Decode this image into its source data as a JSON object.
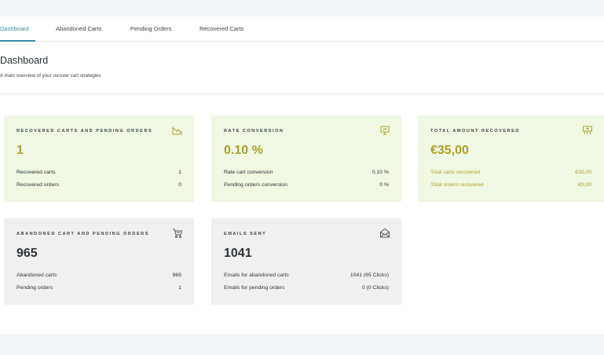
{
  "tabs": [
    {
      "label": "Dashboard"
    },
    {
      "label": "Abandoned Carts"
    },
    {
      "label": "Pending Orders"
    },
    {
      "label": "Recovered Carts"
    }
  ],
  "page": {
    "title": "Dashboard",
    "subtitle": "A main overview of your recover cart strategies"
  },
  "cards": [
    {
      "title": "RECOVERED CARTS AND PENDING ORDERS",
      "icon": "chart-down-icon",
      "value": "1",
      "rows": [
        {
          "label": "Recovered carts",
          "value": "1"
        },
        {
          "label": "Recovered orders",
          "value": "0"
        }
      ]
    },
    {
      "title": "RATE CONVERSION",
      "icon": "presentation-board-icon",
      "value": "0.10 %",
      "rows": [
        {
          "label": "Rate cart conversion",
          "value": "0.10 %"
        },
        {
          "label": "Pending orders conversion",
          "value": "0 %"
        }
      ]
    },
    {
      "title": "TOTAL AMOUNT RECOVERED",
      "icon": "money-board-icon",
      "value": "€35,00",
      "rows": [
        {
          "label": "Total carts recovered",
          "value": "€35,00"
        },
        {
          "label": "Total orders recovered",
          "value": "€0,00"
        }
      ]
    },
    {
      "title": "ABANDONED CART AND PENDING ORDERS",
      "icon": "cart-icon",
      "value": "965",
      "rows": [
        {
          "label": "Abandoned carts",
          "value": "965"
        },
        {
          "label": "Pending orders",
          "value": "1"
        }
      ]
    },
    {
      "title": "EMAILS SENT",
      "icon": "envelope-icon",
      "value": "1041",
      "rows": [
        {
          "label": "Emails for abandoned carts",
          "value": "1041 (65 Clicks)"
        },
        {
          "label": "Emails for pending orders",
          "value": "0 (0 Clicks)"
        }
      ]
    }
  ],
  "colors": {
    "accent": "#3a8fa3",
    "green_card": "#eef8e2",
    "grey_card": "#f0f0f1",
    "gold_value": "#b0a02a"
  }
}
